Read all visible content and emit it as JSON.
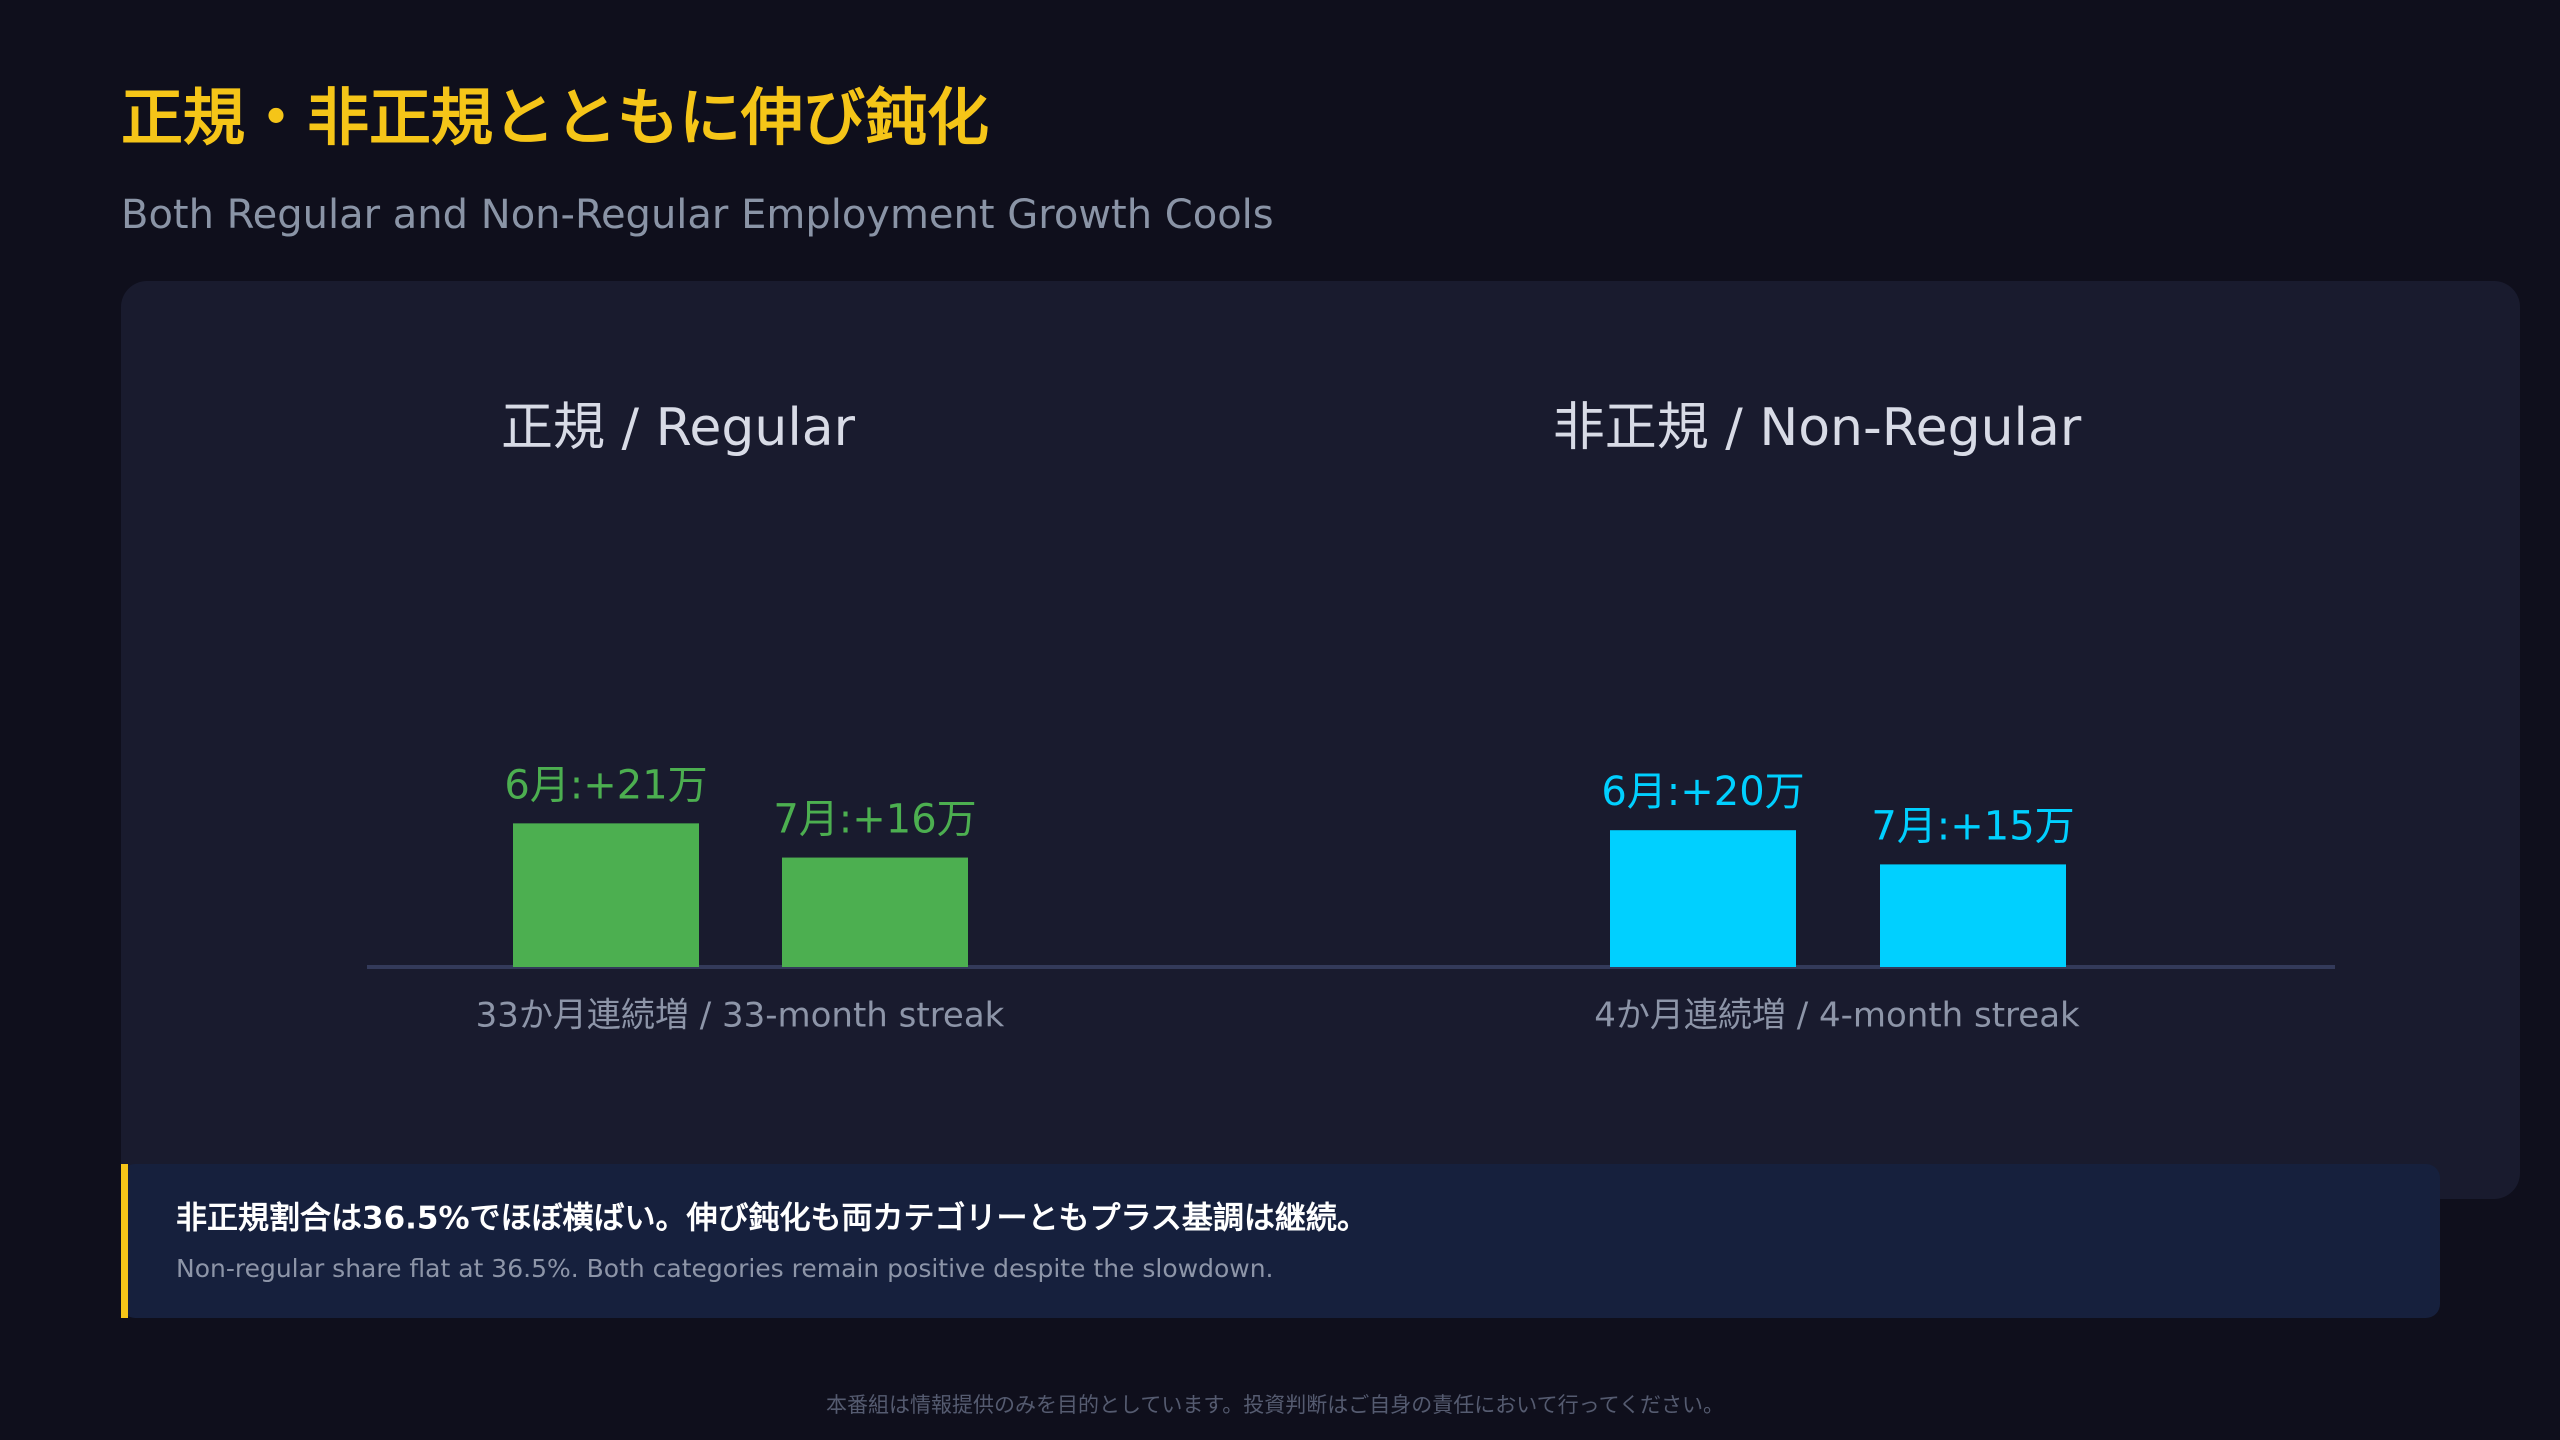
{
  "header": {
    "title": "正規・非正規とともに伸び鈍化",
    "subtitle": "Both Regular and Non-Regular Employment Growth Cools"
  },
  "chart_data": [
    {
      "type": "bar",
      "title": "正規 / Regular",
      "values": [
        21,
        16
      ],
      "value_labels": [
        "6月:+21万",
        "7月:+16万"
      ],
      "color": "#4caf50",
      "note": "33か月連続増 / 33-month streak"
    },
    {
      "type": "bar",
      "title": "非正規 / Non-Regular",
      "values": [
        20,
        15
      ],
      "value_labels": [
        "6月:+20万",
        "7月:+15万"
      ],
      "color": "#00d0ff",
      "note": "4か月連続増 / 4-month streak"
    }
  ],
  "callout": {
    "text": "非正規割合は36.5%でほぼ横ばい。伸び鈍化も両カテゴリーともプラス基調は継続。",
    "subtext": "Non-regular share flat at 36.5%. Both categories remain positive despite the slowdown."
  },
  "footer": "本番組は情報提供のみを目的としています。投資判断はご自身の責任において行ってください。"
}
